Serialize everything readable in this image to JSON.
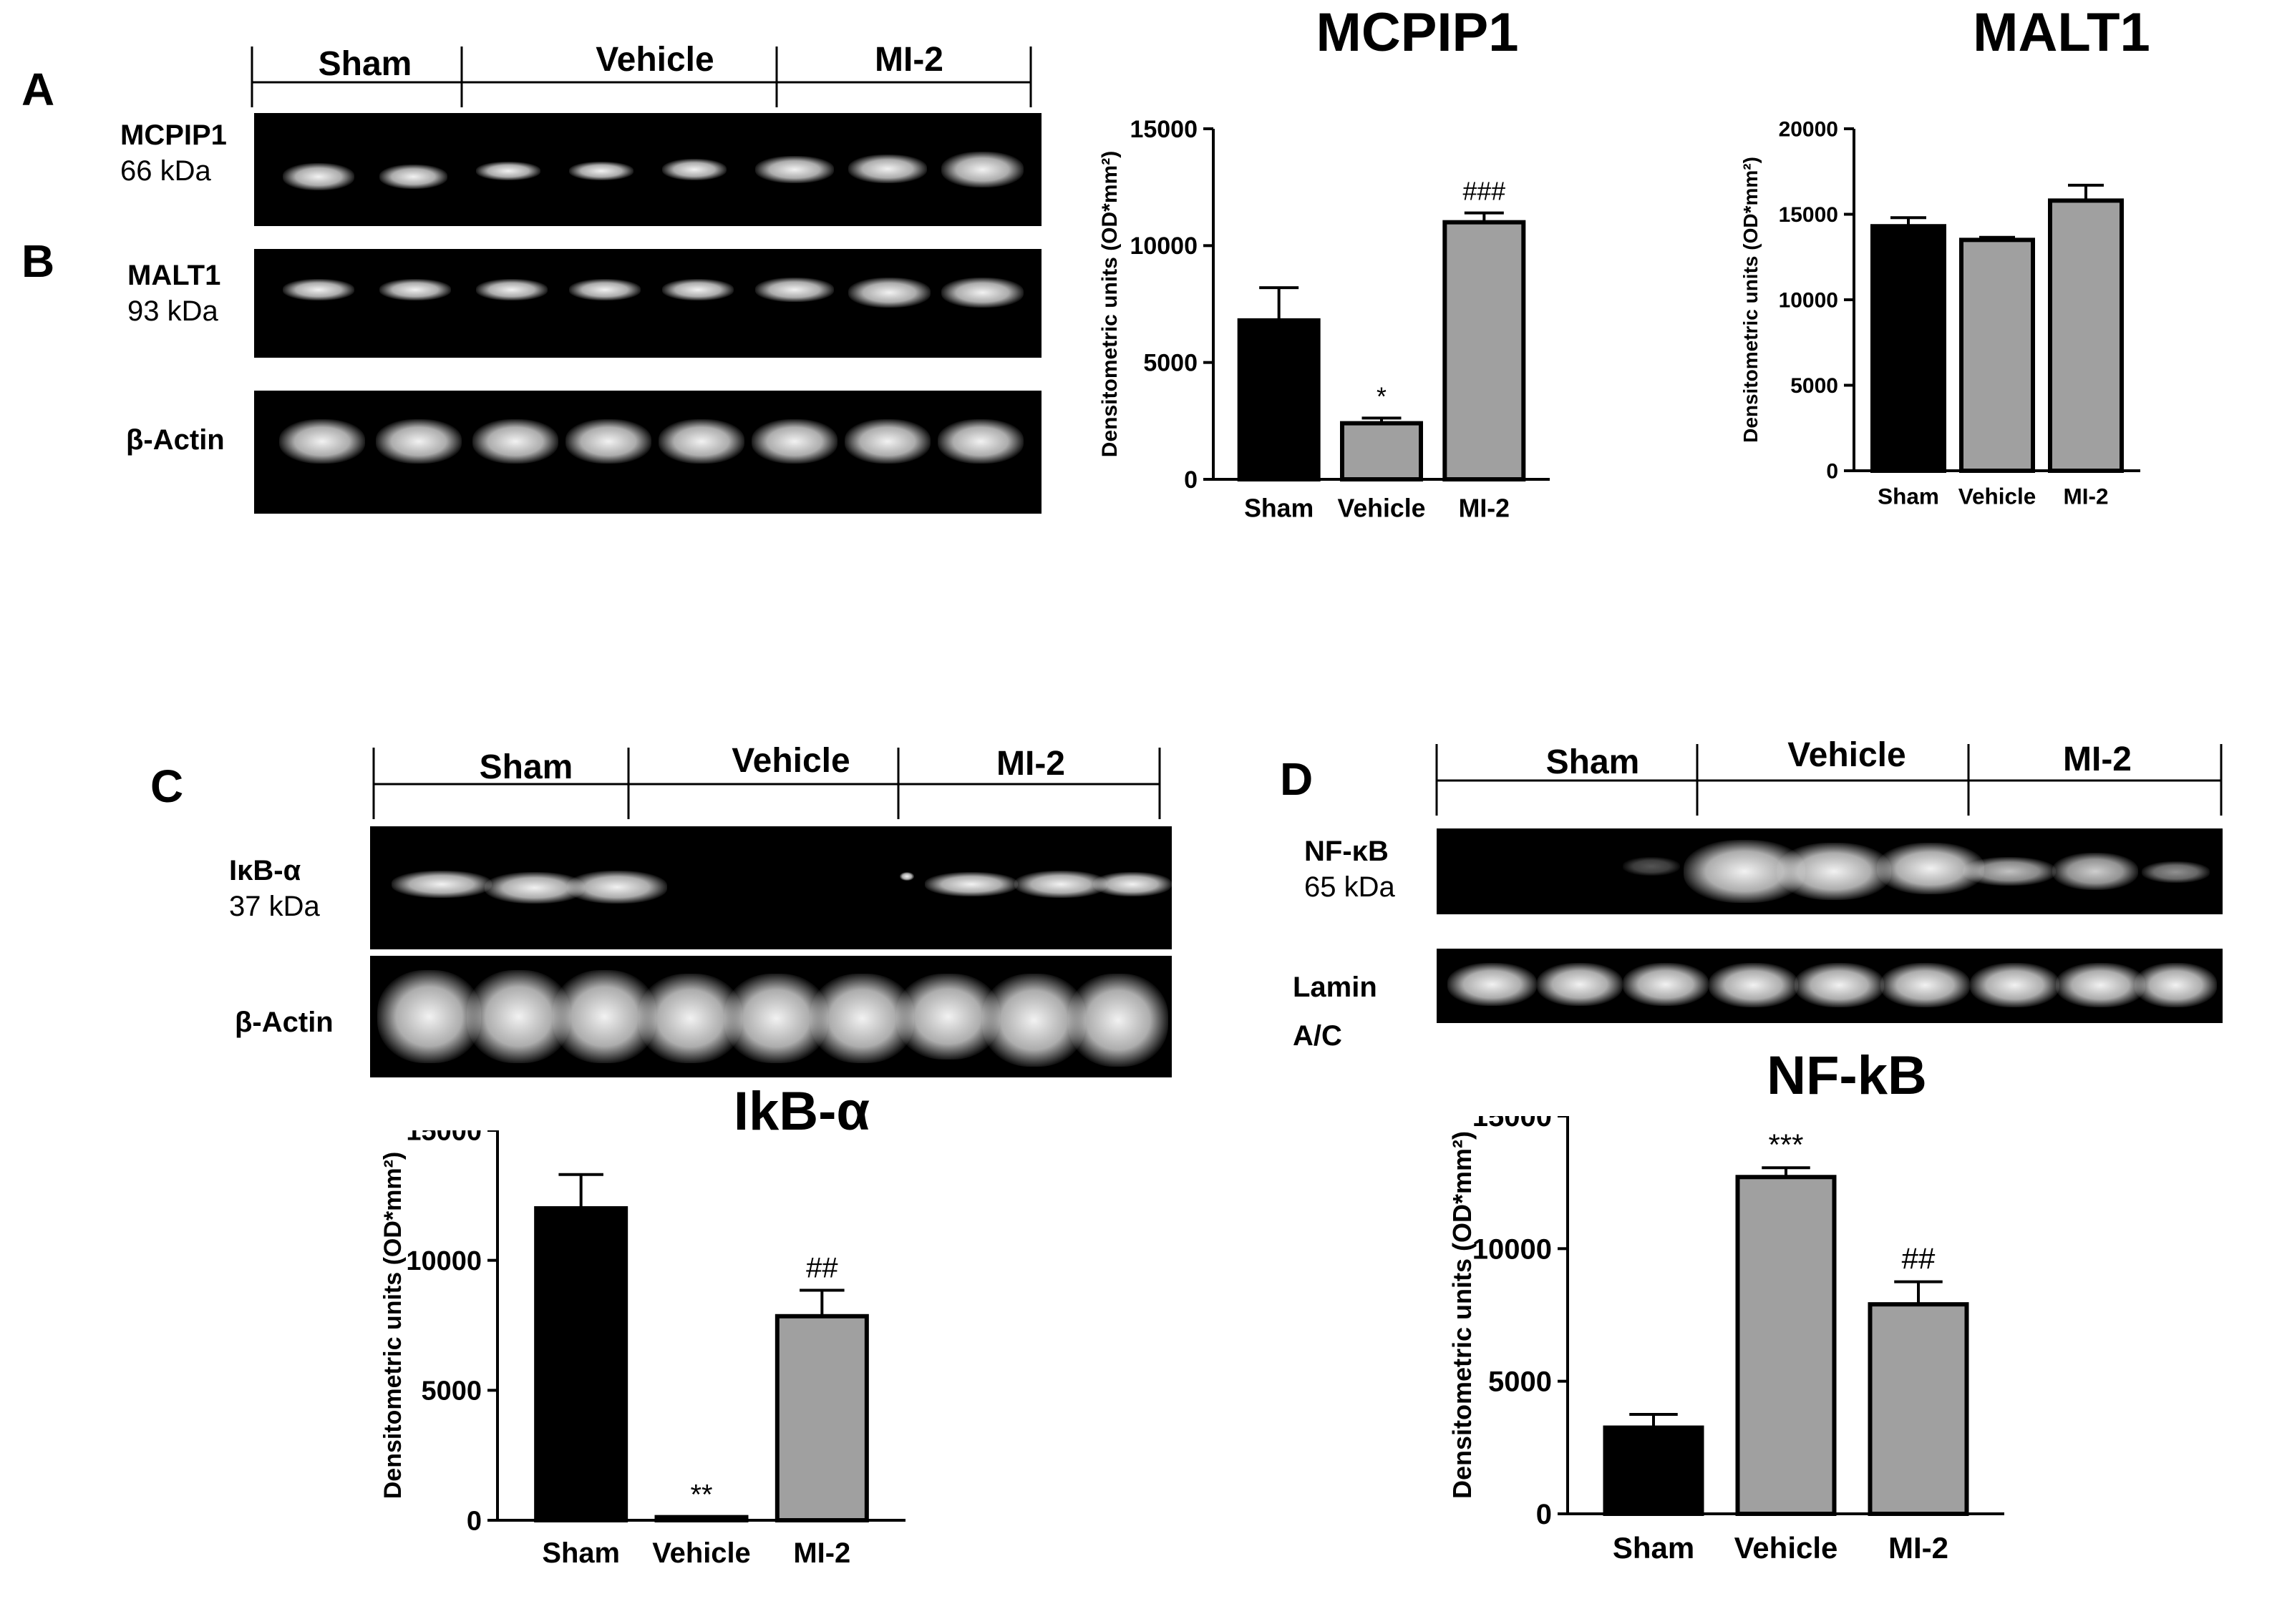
{
  "panel_letters": [
    "A",
    "B",
    "C",
    "D"
  ],
  "group_names": [
    "Sham",
    "Vehicle",
    "MI-2"
  ],
  "blots": {
    "a": {
      "name": "MCPIP1",
      "kda": "66 kDa"
    },
    "b": {
      "name": "MALT1",
      "kda": "93 kDa"
    },
    "b_loading": {
      "name": "β-Actin"
    },
    "c": {
      "name": "IκB-α",
      "kda": "37 kDa"
    },
    "c_loading": {
      "name": "β-Actin"
    },
    "d": {
      "name": "NF-κB",
      "kda": "65 kDa"
    },
    "d_loading": {
      "name_line1": "Lamin",
      "name_line2": "A/C"
    }
  },
  "colors": {
    "sham": "#000000",
    "treated": "#a0a0a0",
    "blot_bg": "#000000"
  },
  "chart_data": [
    {
      "id": "mcpip1",
      "type": "bar",
      "title": "MCPIP1",
      "categories": [
        "Sham",
        "Vehicle",
        "MI-2"
      ],
      "values": [
        6800,
        2400,
        11000
      ],
      "errors": [
        1400,
        220,
        400
      ],
      "annotations": [
        "",
        "*",
        "###"
      ],
      "ylabel": "Densitometric units (OD*mm²)",
      "ylim": [
        0,
        15000
      ],
      "yticks": [
        0,
        5000,
        10000,
        15000
      ]
    },
    {
      "id": "malt1",
      "type": "bar",
      "title": "MALT1",
      "categories": [
        "Sham",
        "Vehicle",
        "MI-2"
      ],
      "values": [
        14300,
        13500,
        15800
      ],
      "errors": [
        500,
        150,
        900
      ],
      "annotations": [
        "",
        "",
        ""
      ],
      "ylabel": "Densitometric units (OD*mm²)",
      "ylim": [
        0,
        20000
      ],
      "yticks": [
        0,
        5000,
        10000,
        15000,
        20000
      ]
    },
    {
      "id": "ikba",
      "type": "bar",
      "title": "IkB-α",
      "categories": [
        "Sham",
        "Vehicle",
        "MI-2"
      ],
      "values": [
        12000,
        120,
        7850
      ],
      "errors": [
        1300,
        0,
        1000
      ],
      "annotations": [
        "",
        "**",
        "##"
      ],
      "ylabel": "Densitometric units (OD*mm²)",
      "ylim": [
        0,
        15000
      ],
      "yticks": [
        0,
        5000,
        10000,
        15000
      ]
    },
    {
      "id": "nfkb",
      "type": "bar",
      "title": "NF-kB",
      "categories": [
        "Sham",
        "Vehicle",
        "MI-2"
      ],
      "values": [
        3250,
        12700,
        7900
      ],
      "errors": [
        500,
        350,
        850
      ],
      "annotations": [
        "",
        "***",
        "##"
      ],
      "ylabel": "Densitometric units (OD*mm²)",
      "ylim": [
        0,
        15000
      ],
      "yticks": [
        0,
        5000,
        10000,
        15000
      ]
    }
  ]
}
